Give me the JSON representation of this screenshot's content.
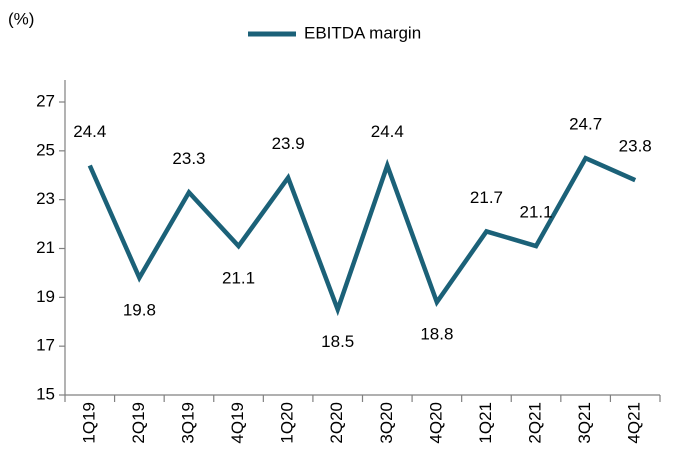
{
  "chart_data": {
    "type": "line",
    "unit_label": "(%)",
    "categories": [
      "1Q19",
      "2Q19",
      "3Q19",
      "4Q19",
      "1Q20",
      "2Q20",
      "3Q20",
      "4Q20",
      "1Q21",
      "2Q21",
      "3Q21",
      "4Q21"
    ],
    "series": [
      {
        "name": "EBITDA margin",
        "color": "#1b6178",
        "values": [
          24.4,
          19.8,
          23.3,
          21.1,
          23.9,
          18.5,
          24.4,
          18.8,
          21.7,
          21.1,
          24.7,
          23.8
        ]
      }
    ],
    "ylim": [
      15,
      27
    ],
    "yticks": [
      15,
      17,
      19,
      21,
      23,
      25,
      27
    ],
    "legend": "top",
    "grid": false
  }
}
